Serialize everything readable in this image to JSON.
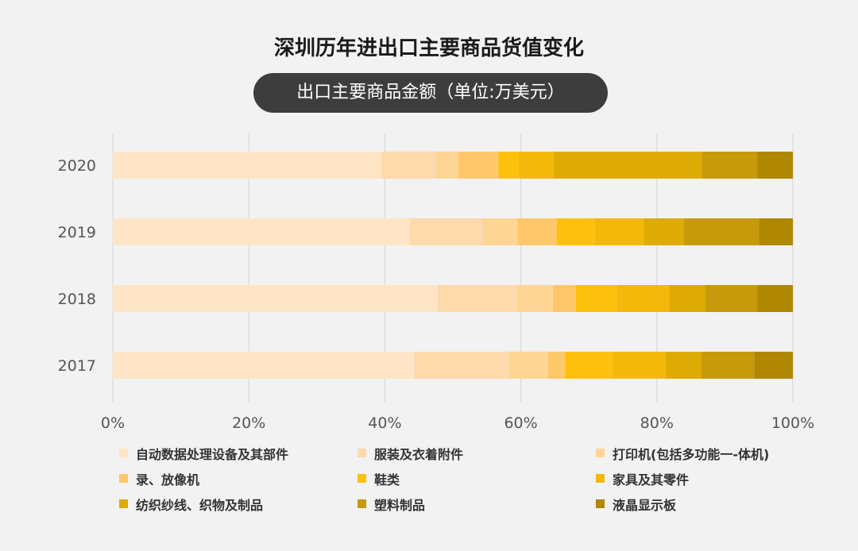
{
  "chart_data": {
    "type": "bar",
    "orientation": "horizontal",
    "stacked": "percent",
    "title": "深圳历年进出口主要商品货值变化",
    "subtitle": "出口主要商品金额（单位:万美元）",
    "categories": [
      "2020",
      "2019",
      "2018",
      "2017"
    ],
    "x_ticks": [
      "0%",
      "20%",
      "40%",
      "60%",
      "80%",
      "100%"
    ],
    "xlim": [
      0,
      100
    ],
    "grid": true,
    "legend_position": "bottom",
    "series": [
      {
        "name": "自动数据处理设备及其部件",
        "color": "#fde5c6",
        "values": [
          39.5,
          43.7,
          47.8,
          44.3
        ]
      },
      {
        "name": "服装及衣着附件",
        "color": "#fdd9ab",
        "values": [
          8.0,
          10.7,
          11.6,
          13.9
        ]
      },
      {
        "name": "打印机(包括多功能一-体机)",
        "color": "#fed595",
        "values": [
          3.3,
          5.1,
          5.3,
          5.8
        ]
      },
      {
        "name": "录、放像机",
        "color": "#fec86a",
        "values": [
          5.9,
          5.8,
          3.4,
          2.5
        ]
      },
      {
        "name": "鞋类",
        "color": "#fdc10d",
        "values": [
          3.0,
          5.6,
          6.0,
          7.0
        ]
      },
      {
        "name": "家具及其零件",
        "color": "#f3b809",
        "values": [
          5.2,
          7.2,
          7.7,
          7.8
        ]
      },
      {
        "name": "纺织纱线、织物及制品",
        "color": "#deab05",
        "values": [
          21.7,
          5.9,
          5.3,
          5.2
        ]
      },
      {
        "name": "塑料制品",
        "color": "#c79a0c",
        "values": [
          8.2,
          11.0,
          7.7,
          7.8
        ]
      },
      {
        "name": "液晶显示板",
        "color": "#b08702",
        "values": [
          5.2,
          5.0,
          5.2,
          5.7
        ]
      }
    ]
  }
}
